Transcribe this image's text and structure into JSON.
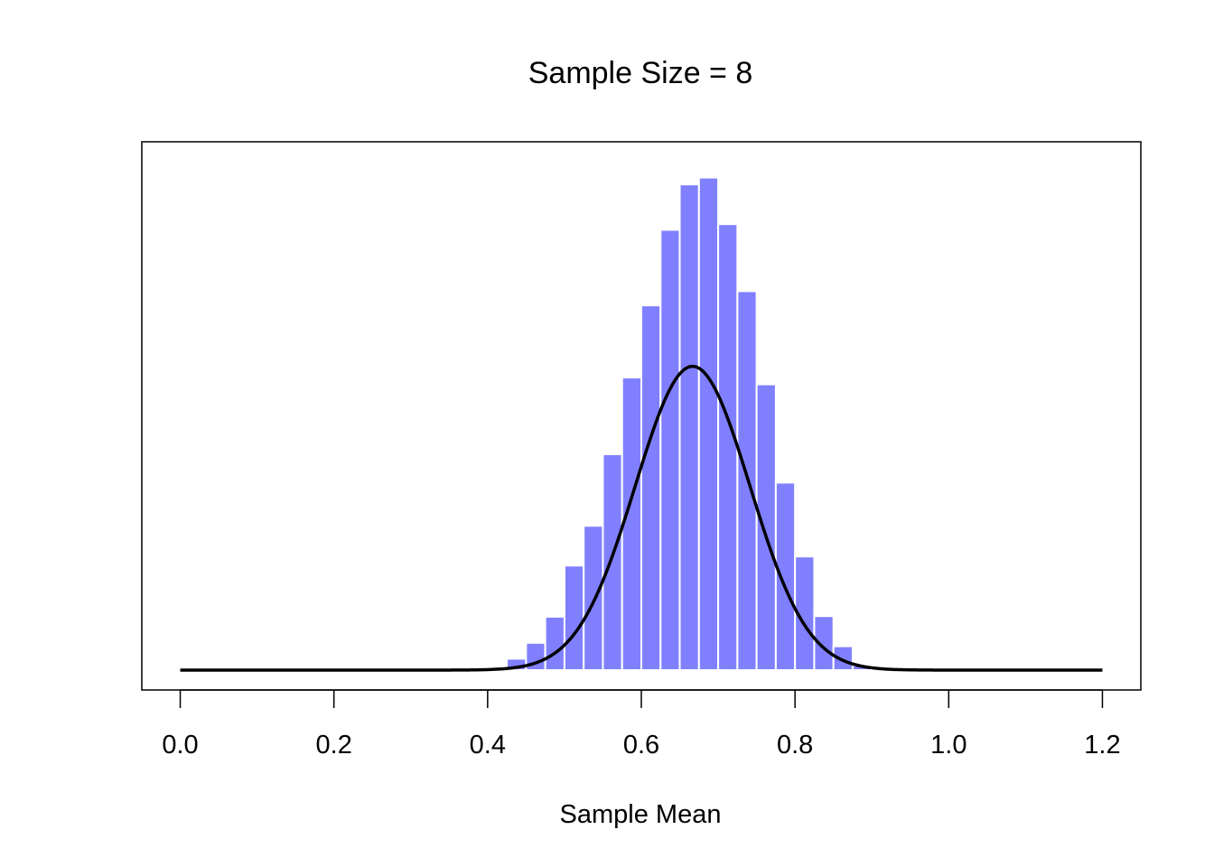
{
  "chart_data": {
    "type": "bar",
    "title": "Sample Size = 8",
    "xlabel": "Sample Mean",
    "ylabel": "",
    "xlim": [
      -0.05,
      1.25
    ],
    "ylim": [
      -0.35,
      9.3
    ],
    "x_ticks": [
      0.0,
      0.2,
      0.4,
      0.6,
      0.8,
      1.0,
      1.2
    ],
    "x_tick_labels": [
      "0.0",
      "0.2",
      "0.4",
      "0.6",
      "0.8",
      "1.0",
      "1.2"
    ],
    "y_axis_shown": false,
    "grid": false,
    "bar_color": "#8080ff",
    "bar_edge_color": "#ffffff",
    "curve_color": "#000000",
    "bin_width": 0.025,
    "bins_left_edges": [
      0.425,
      0.45,
      0.475,
      0.5,
      0.525,
      0.55,
      0.575,
      0.6,
      0.625,
      0.65,
      0.675,
      0.7,
      0.725,
      0.75,
      0.775,
      0.8,
      0.825,
      0.85,
      0.875
    ],
    "bin_densities": [
      0.2,
      0.48,
      0.94,
      1.84,
      2.54,
      3.8,
      5.15,
      6.42,
      7.75,
      8.55,
      8.67,
      7.85,
      6.67,
      5.03,
      3.3,
      2.0,
      0.95,
      0.42,
      0.08
    ],
    "curve": {
      "mean": 0.6667,
      "sd": 0.0746,
      "x_range": [
        0.0,
        1.2
      ]
    }
  }
}
